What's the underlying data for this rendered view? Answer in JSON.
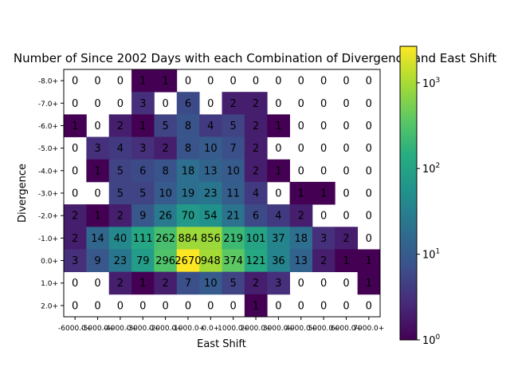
{
  "chart_data": {
    "type": "heatmap",
    "title": "Number of Since 2002 Days with each Combination of Divergence and East Shift",
    "xlabel": "East Shift",
    "ylabel": "Divergence",
    "x_tick_labels": [
      "-6000.0+",
      "-5000.0+",
      "-4000.0+",
      "-3000.0+",
      "-2000.0+",
      "-1000.0+",
      "0.0+",
      "1000.0+",
      "2000.0+",
      "3000.0+",
      "4000.0+",
      "5000.0+",
      "6000.0+",
      "7000.0+"
    ],
    "y_tick_labels": [
      "-8.0+",
      "-7.0+",
      "-6.0+",
      "-5.0+",
      "-4.0+",
      "-3.0+",
      "-2.0+",
      "-1.0+",
      "0.0+",
      "1.0+",
      "2.0+"
    ],
    "values": [
      [
        0,
        0,
        0,
        1,
        1,
        0,
        0,
        0,
        0,
        0,
        0,
        0,
        0,
        0
      ],
      [
        0,
        0,
        0,
        3,
        0,
        6,
        0,
        2,
        2,
        0,
        0,
        0,
        0,
        0
      ],
      [
        1,
        0,
        2,
        1,
        5,
        8,
        4,
        5,
        2,
        1,
        0,
        0,
        0,
        0
      ],
      [
        0,
        3,
        4,
        3,
        2,
        8,
        10,
        7,
        2,
        0,
        0,
        0,
        0,
        0
      ],
      [
        0,
        1,
        5,
        6,
        8,
        18,
        13,
        10,
        2,
        1,
        0,
        0,
        0,
        0
      ],
      [
        0,
        0,
        5,
        5,
        10,
        19,
        23,
        11,
        4,
        0,
        1,
        1,
        0,
        0
      ],
      [
        2,
        1,
        2,
        9,
        26,
        70,
        54,
        21,
        6,
        4,
        2,
        0,
        0,
        0
      ],
      [
        2,
        14,
        40,
        111,
        262,
        884,
        856,
        219,
        101,
        37,
        18,
        3,
        2,
        0
      ],
      [
        3,
        9,
        23,
        79,
        296,
        2670,
        948,
        374,
        121,
        36,
        13,
        2,
        1,
        1
      ],
      [
        0,
        0,
        2,
        1,
        2,
        7,
        10,
        5,
        2,
        3,
        0,
        0,
        0,
        1
      ],
      [
        0,
        0,
        0,
        0,
        0,
        0,
        0,
        0,
        1,
        0,
        0,
        0,
        0,
        0
      ]
    ],
    "colorbar": {
      "scale": "log",
      "range": [
        1,
        2670
      ],
      "tick_values": [
        1,
        10,
        100,
        1000
      ],
      "tick_labels": [
        "10^0",
        "10^1",
        "10^2",
        "10^3"
      ]
    },
    "colormap": "viridis",
    "zero_color": "#ffffff",
    "grid": false
  }
}
